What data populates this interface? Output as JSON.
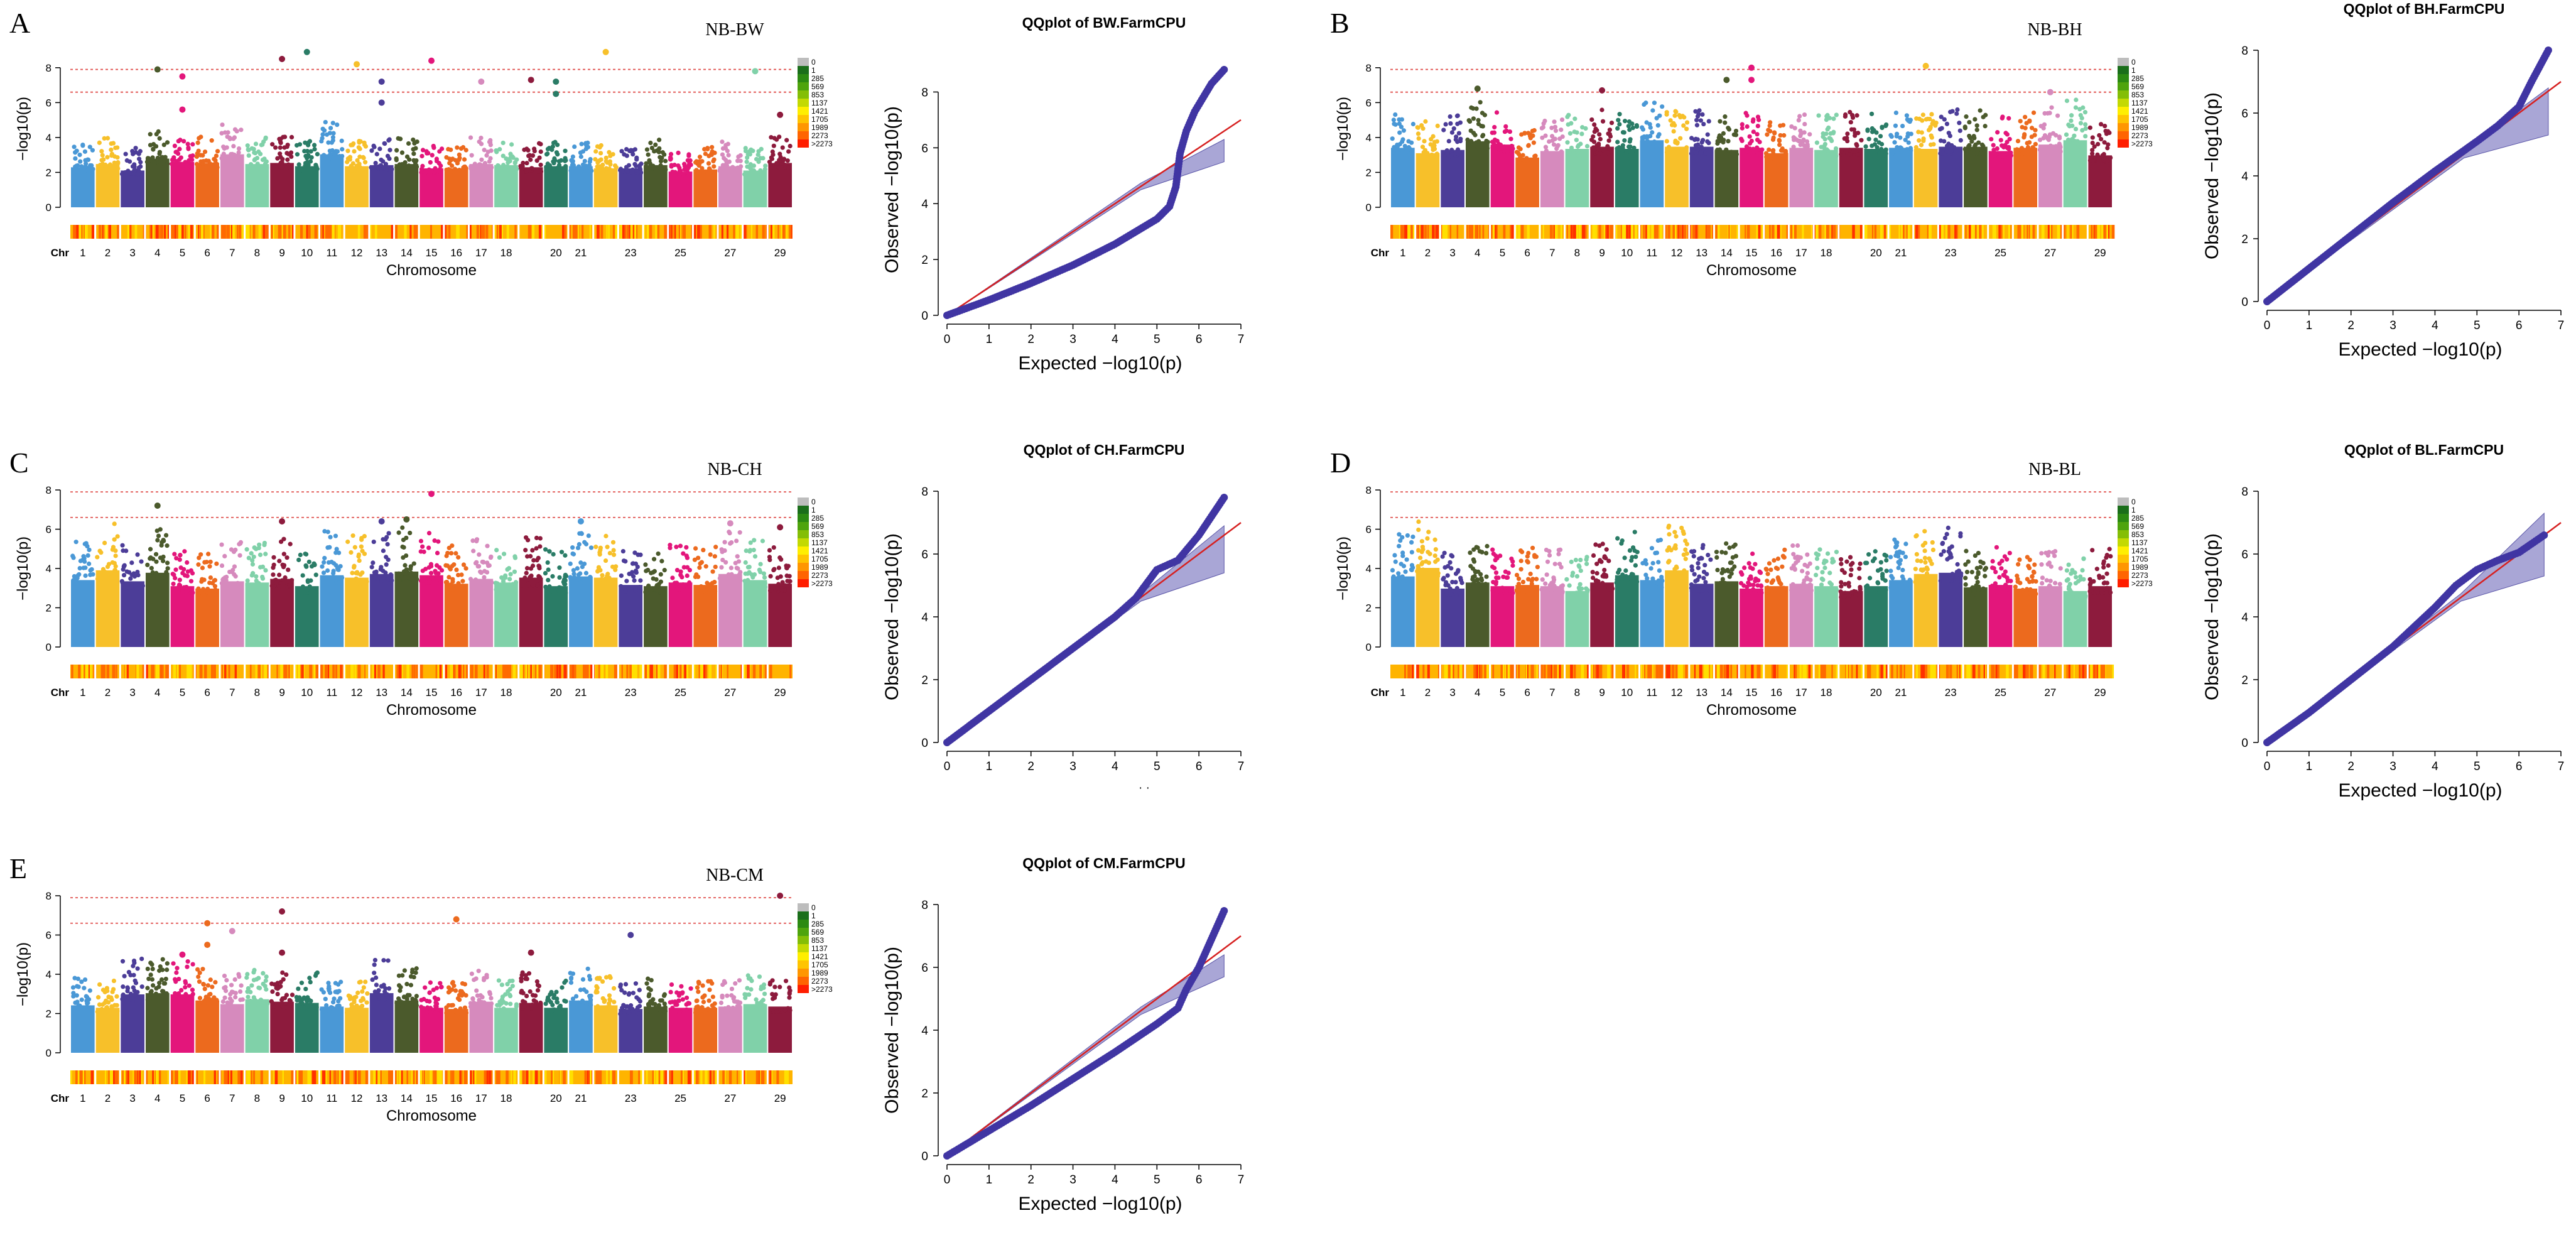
{
  "chart_data": [
    {
      "type": "scatter",
      "subtype": "manhattan",
      "panel": "A",
      "title": "NB-BW",
      "xlabel": "Chromosome",
      "ylabel": "−log10(p)",
      "ylim": [
        0,
        9
      ],
      "yticks": [
        0,
        2,
        4,
        6,
        8
      ],
      "thresholds": [
        7.9,
        6.6
      ],
      "chr_label": "Chr",
      "chromosome_labels": [
        "1",
        "2",
        "3",
        "4",
        "5",
        "6",
        "7",
        "8",
        "9",
        "10",
        "11",
        "12",
        "13",
        "14",
        "15",
        "16",
        "17",
        "18",
        "20",
        "21",
        "23",
        "25",
        "27",
        "29"
      ],
      "chromosome_baseline_max": [
        3.7,
        4.0,
        3.4,
        4.5,
        4.2,
        4.1,
        4.9,
        4.0,
        4.1,
        3.8,
        4.9,
        3.8,
        3.9,
        4.0,
        3.6,
        3.6,
        4.0,
        3.9,
        3.7,
        3.8,
        3.8,
        3.6,
        3.6,
        3.9,
        3.3,
        3.5,
        3.8,
        3.4,
        4.1
      ],
      "top_hits": [
        {
          "chr": 4,
          "value": 7.9
        },
        {
          "chr": 5,
          "value": 7.5
        },
        {
          "chr": 5,
          "value": 5.6
        },
        {
          "chr": 9,
          "value": 8.5
        },
        {
          "chr": 10,
          "value": 8.9
        },
        {
          "chr": 12,
          "value": 8.2
        },
        {
          "chr": 13,
          "value": 7.2
        },
        {
          "chr": 13,
          "value": 6.0
        },
        {
          "chr": 15,
          "value": 8.4
        },
        {
          "chr": 17,
          "value": 7.2
        },
        {
          "chr": 19,
          "value": 7.3
        },
        {
          "chr": 20,
          "value": 7.2
        },
        {
          "chr": 20,
          "value": 6.5
        },
        {
          "chr": 22,
          "value": 8.9
        },
        {
          "chr": 28,
          "value": 7.8
        },
        {
          "chr": 29,
          "value": 5.3
        }
      ],
      "legend_labels": [
        "0",
        "1",
        "285",
        "569",
        "853",
        "1137",
        "1421",
        "1705",
        "1989",
        "2273",
        ">2273"
      ]
    },
    {
      "type": "scatter",
      "subtype": "qqplot",
      "panel": "A",
      "title": "QQplot of BW.FarmCPU",
      "xlabel": "Expected −log10(p)",
      "ylabel": "Observed −log10(p)",
      "xlim": [
        0,
        7
      ],
      "ylim": [
        0,
        9
      ],
      "xticks": [
        0,
        1,
        2,
        3,
        4,
        5,
        6,
        7
      ],
      "yticks": [
        0,
        2,
        4,
        6,
        8
      ],
      "curve": [
        [
          0,
          0
        ],
        [
          1,
          0.55
        ],
        [
          2,
          1.15
        ],
        [
          3,
          1.8
        ],
        [
          4,
          2.55
        ],
        [
          4.5,
          3.0
        ],
        [
          5,
          3.45
        ],
        [
          5.3,
          3.9
        ],
        [
          5.45,
          4.6
        ],
        [
          5.55,
          5.8
        ],
        [
          5.7,
          6.6
        ],
        [
          5.9,
          7.3
        ],
        [
          6.1,
          7.8
        ],
        [
          6.3,
          8.3
        ],
        [
          6.6,
          8.8
        ]
      ],
      "ci_end": [
        6.6,
        6.3,
        5.5
      ]
    },
    {
      "type": "scatter",
      "subtype": "manhattan",
      "panel": "B",
      "title": "NB-BH",
      "xlabel": "Chromosome",
      "ylabel": "−log10(p)",
      "ylim": [
        0,
        9
      ],
      "yticks": [
        0,
        2,
        4,
        6,
        8
      ],
      "thresholds": [
        7.9,
        6.6
      ],
      "chr_label": "Chr",
      "chromosome_labels": [
        "1",
        "2",
        "3",
        "4",
        "5",
        "6",
        "7",
        "8",
        "9",
        "10",
        "11",
        "12",
        "13",
        "14",
        "15",
        "16",
        "17",
        "18",
        "20",
        "21",
        "23",
        "25",
        "27",
        "29"
      ],
      "chromosome_baseline_max": [
        5.5,
        5.0,
        5.3,
        6.1,
        5.8,
        4.6,
        5.2,
        5.4,
        5.6,
        5.4,
        6.2,
        5.6,
        5.6,
        5.3,
        5.5,
        5.0,
        5.5,
        5.3,
        5.5,
        5.4,
        5.5,
        5.4,
        5.6,
        5.6,
        5.2,
        5.5,
        5.8,
        6.2,
        4.8
      ],
      "top_hits": [
        {
          "chr": 4,
          "value": 6.8
        },
        {
          "chr": 9,
          "value": 6.7
        },
        {
          "chr": 14,
          "value": 7.3
        },
        {
          "chr": 15,
          "value": 8.0
        },
        {
          "chr": 15,
          "value": 7.3
        },
        {
          "chr": 22,
          "value": 8.1
        },
        {
          "chr": 27,
          "value": 6.6
        }
      ],
      "legend_labels": [
        "0",
        "1",
        "285",
        "569",
        "853",
        "1137",
        "1421",
        "1705",
        "1989",
        "2273",
        ">2273"
      ]
    },
    {
      "type": "scatter",
      "subtype": "qqplot",
      "panel": "B",
      "title": "QQplot of BH.FarmCPU",
      "xlabel": "Expected −log10(p)",
      "ylabel": "Observed −log10(p)",
      "xlim": [
        0,
        7
      ],
      "ylim": [
        0,
        8
      ],
      "xticks": [
        0,
        1,
        2,
        3,
        4,
        5,
        6,
        7
      ],
      "yticks": [
        0,
        2,
        4,
        6,
        8
      ],
      "curve": [
        [
          0,
          0
        ],
        [
          1,
          1.05
        ],
        [
          2,
          2.1
        ],
        [
          3,
          3.15
        ],
        [
          4,
          4.15
        ],
        [
          5,
          5.1
        ],
        [
          5.5,
          5.6
        ],
        [
          6,
          6.2
        ],
        [
          6.3,
          7.0
        ],
        [
          6.5,
          7.5
        ],
        [
          6.7,
          8.0
        ]
      ],
      "ci_end": [
        6.7,
        6.8,
        5.3
      ]
    },
    {
      "type": "scatter",
      "subtype": "manhattan",
      "panel": "C",
      "title": "NB-CH",
      "xlabel": "Chromosome",
      "ylabel": "−log10(p)",
      "ylim": [
        0,
        8
      ],
      "yticks": [
        0,
        2,
        4,
        6,
        8
      ],
      "thresholds": [
        7.9,
        6.6
      ],
      "chr_label": "Chr",
      "chromosome_baseline_max": [
        5.5,
        6.3,
        5.4,
        6.1,
        5.0,
        4.8,
        5.4,
        5.3,
        5.6,
        5.0,
        5.9,
        5.7,
        6.0,
        6.2,
        5.9,
        5.2,
        5.6,
        5.3,
        5.7,
        5.0,
        5.8,
        5.7,
        5.1,
        5.0,
        5.3,
        5.1,
        6.0,
        5.5,
        5.2
      ],
      "chromosome_labels": [
        "1",
        "2",
        "3",
        "4",
        "5",
        "6",
        "7",
        "8",
        "9",
        "10",
        "11",
        "12",
        "13",
        "14",
        "15",
        "16",
        "17",
        "18",
        "20",
        "21",
        "23",
        "25",
        "27",
        "29"
      ],
      "top_hits": [
        {
          "chr": 4,
          "value": 7.2
        },
        {
          "chr": 9,
          "value": 6.4
        },
        {
          "chr": 13,
          "value": 6.4
        },
        {
          "chr": 14,
          "value": 6.5
        },
        {
          "chr": 15,
          "value": 7.8
        },
        {
          "chr": 21,
          "value": 6.4
        },
        {
          "chr": 27,
          "value": 6.3
        },
        {
          "chr": 29,
          "value": 6.1
        }
      ],
      "legend_labels": [
        "0",
        "1",
        "285",
        "569",
        "853",
        "1137",
        "1421",
        "1705",
        "1989",
        "2273",
        ">2273"
      ]
    },
    {
      "type": "scatter",
      "subtype": "qqplot",
      "panel": "C",
      "title": "QQplot of CH.FarmCPU",
      "xlabel": "",
      "xlabel_artifact": "· ·",
      "ylabel": "Observed −log10(p)",
      "xlim": [
        0,
        7
      ],
      "ylim": [
        0,
        8
      ],
      "xticks": [
        0,
        1,
        2,
        3,
        4,
        5,
        6,
        7
      ],
      "yticks": [
        0,
        2,
        4,
        6,
        8
      ],
      "curve": [
        [
          0,
          0
        ],
        [
          1,
          1.0
        ],
        [
          2,
          2.0
        ],
        [
          3,
          3.0
        ],
        [
          4,
          4.0
        ],
        [
          4.5,
          4.6
        ],
        [
          5,
          5.5
        ],
        [
          5.5,
          5.8
        ],
        [
          6,
          6.6
        ],
        [
          6.3,
          7.2
        ],
        [
          6.6,
          7.8
        ]
      ],
      "ci_end": [
        6.6,
        6.9,
        5.4
      ]
    },
    {
      "type": "scatter",
      "subtype": "manhattan",
      "panel": "D",
      "title": "NB-BL",
      "xlabel": "Chromosome",
      "ylabel": "−log10(p)",
      "ylim": [
        0,
        8
      ],
      "yticks": [
        0,
        2,
        4,
        6,
        8
      ],
      "thresholds": [
        7.9,
        6.6
      ],
      "chr_label": "Chr",
      "chromosome_labels": [
        "1",
        "2",
        "3",
        "4",
        "5",
        "6",
        "7",
        "8",
        "9",
        "10",
        "11",
        "12",
        "13",
        "14",
        "15",
        "16",
        "17",
        "18",
        "20",
        "21",
        "23",
        "25",
        "27",
        "29"
      ],
      "chromosome_baseline_max": [
        5.8,
        6.5,
        4.8,
        5.3,
        5.0,
        5.1,
        5.0,
        4.6,
        5.3,
        5.9,
        5.5,
        6.3,
        5.2,
        5.4,
        4.8,
        5.0,
        5.2,
        5.0,
        4.6,
        5.0,
        5.5,
        6.0,
        6.1,
        4.9,
        5.1,
        4.8,
        5.0,
        4.6,
        5.0
      ],
      "top_hits": [],
      "legend_labels": [
        "0",
        "1",
        "285",
        "569",
        "853",
        "1137",
        "1421",
        "1705",
        "1989",
        "2273",
        ">2273"
      ]
    },
    {
      "type": "scatter",
      "subtype": "qqplot",
      "panel": "D",
      "title": "QQplot of BL.FarmCPU",
      "xlabel": "Expected −log10(p)",
      "ylabel": "Observed −log10(p)",
      "xlim": [
        0,
        7
      ],
      "ylim": [
        0,
        8
      ],
      "xticks": [
        0,
        1,
        2,
        3,
        4,
        5,
        6,
        7
      ],
      "yticks": [
        0,
        2,
        4,
        6,
        8
      ],
      "curve": [
        [
          0,
          0
        ],
        [
          1,
          0.95
        ],
        [
          2,
          2.0
        ],
        [
          3,
          3.05
        ],
        [
          4,
          4.3
        ],
        [
          4.5,
          5.0
        ],
        [
          5,
          5.5
        ],
        [
          5.5,
          5.8
        ],
        [
          6,
          6.05
        ],
        [
          6.6,
          6.6
        ]
      ],
      "ci_end": [
        6.6,
        7.3,
        5.3
      ]
    },
    {
      "type": "scatter",
      "subtype": "manhattan",
      "panel": "E",
      "title": "NB-CM",
      "xlabel": "Chromosome",
      "ylabel": "−log10(p)",
      "ylim": [
        0,
        8
      ],
      "yticks": [
        0,
        2,
        4,
        6,
        8
      ],
      "ytick_labels": [
        "0",
        "2",
        "4",
        "6",
        "8"
      ],
      "thresholds": [
        7.9,
        6.6
      ],
      "chr_label": "Chr",
      "chromosome_labels": [
        "1",
        "2",
        "3",
        "4",
        "5",
        "6",
        "7",
        "8",
        "9",
        "10",
        "11",
        "12",
        "13",
        "14",
        "15",
        "16",
        "17",
        "18",
        "20",
        "21",
        "23",
        "25",
        "27",
        "29"
      ],
      "chromosome_baseline_max": [
        3.9,
        3.7,
        4.8,
        4.9,
        4.8,
        4.3,
        4.0,
        4.4,
        4.2,
        4.1,
        3.8,
        3.7,
        4.9,
        4.3,
        3.7,
        3.6,
        4.2,
        3.7,
        4.1,
        3.7,
        4.3,
        3.9,
        3.6,
        3.8,
        3.7,
        3.7,
        3.8,
        4.0,
        3.8
      ],
      "top_hits": [
        {
          "chr": 5,
          "value": 5.0
        },
        {
          "chr": 6,
          "value": 5.5
        },
        {
          "chr": 6,
          "value": 6.6
        },
        {
          "chr": 7,
          "value": 6.2
        },
        {
          "chr": 9,
          "value": 7.2
        },
        {
          "chr": 9,
          "value": 5.1
        },
        {
          "chr": 16,
          "value": 6.8
        },
        {
          "chr": 19,
          "value": 5.1
        },
        {
          "chr": 23,
          "value": 6.0
        },
        {
          "chr": 29,
          "value": 8.0
        }
      ],
      "legend_labels": [
        "0",
        "1",
        "285",
        "569",
        "853",
        "1137",
        "1421",
        "1705",
        "1989",
        "2273",
        ">2273"
      ]
    },
    {
      "type": "scatter",
      "subtype": "qqplot",
      "panel": "E",
      "title": "QQplot of CM.FarmCPU",
      "xlabel": "Expected −log10(p)",
      "ylabel": "Observed −log10(p)",
      "xlim": [
        0,
        7
      ],
      "ylim": [
        0,
        8
      ],
      "xticks": [
        0,
        1,
        2,
        3,
        4,
        5,
        6,
        7
      ],
      "yticks": [
        0,
        2,
        4,
        6,
        8
      ],
      "curve": [
        [
          0,
          0
        ],
        [
          1,
          0.8
        ],
        [
          2,
          1.6
        ],
        [
          3,
          2.45
        ],
        [
          4,
          3.3
        ],
        [
          5,
          4.2
        ],
        [
          5.5,
          4.7
        ],
        [
          5.7,
          5.3
        ],
        [
          6,
          6.0
        ],
        [
          6.3,
          6.9
        ],
        [
          6.6,
          7.8
        ]
      ],
      "ci_end": [
        6.6,
        6.4,
        5.7
      ]
    }
  ],
  "colors": {
    "chromosome_palette": [
      "#4a98d6",
      "#f7c02a",
      "#4c3d98",
      "#4b5a2c",
      "#e3167b",
      "#ec6a1e",
      "#d68abd",
      "#80d1a9",
      "#8d1b3d",
      "#2a7c66"
    ],
    "threshold_line": "#e0524f",
    "qq_points": "#4035a3",
    "qq_diagonal": "#d62020",
    "qq_ci": "#8c88c8",
    "legend_ramp": [
      "#bdbdbd",
      "#1a6e1a",
      "#2c8a12",
      "#4ea40d",
      "#84be07",
      "#c3d903",
      "#ffee00",
      "#ffc400",
      "#ff9600",
      "#ff6400",
      "#ff1e00"
    ]
  },
  "panel_letters": [
    "A",
    "B",
    "C",
    "D",
    "E"
  ]
}
